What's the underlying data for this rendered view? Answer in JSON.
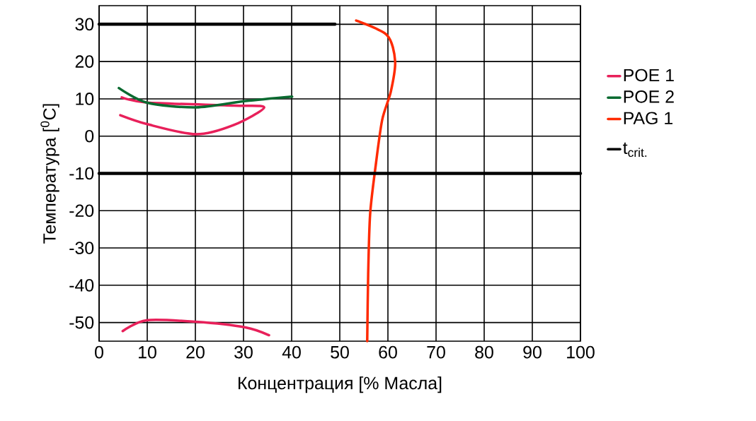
{
  "chart_data": {
    "type": "line",
    "xlabel": "Концентрация [% Масла]",
    "ylabel": "Температура [$^{0}$C]",
    "xlim": [
      0,
      100
    ],
    "ylim": [
      -55,
      35
    ],
    "xticks": [
      0,
      10,
      20,
      30,
      40,
      50,
      60,
      70,
      80,
      90,
      100
    ],
    "yticks": [
      -50,
      -40,
      -30,
      -20,
      -10,
      0,
      10,
      20,
      30
    ],
    "grid": true,
    "legend": "right",
    "marker": "none",
    "line_style": "solid",
    "series": [
      {
        "name": "POE 1",
        "color": "#e8205a",
        "x": [
          4.4,
          10,
          20.1,
          28,
          34.3,
          28,
          10,
          4.7,
          null,
          4.9,
          9.8,
          20.1,
          30.4,
          35.3
        ],
        "values": [
          5.6,
          3.2,
          0.5,
          3.0,
          7.7,
          8.2,
          9.0,
          10.4,
          null,
          -52.3,
          -49.4,
          -49.8,
          -51.3,
          -53.4
        ]
      },
      {
        "name": "POE 2",
        "color": "#0a6a30",
        "x": [
          4.1,
          9.9,
          20.1,
          30.4,
          40.1
        ],
        "values": [
          12.9,
          9.0,
          7.7,
          9.4,
          10.6
        ]
      },
      {
        "name": "PAG 1",
        "color": "#ff2a00",
        "x": [
          53.4,
          59.8,
          61.5,
          60.6,
          58.8,
          57.4,
          56.3,
          55.9,
          55.7
        ],
        "values": [
          31,
          27.1,
          20.1,
          11.9,
          4.3,
          -8.5,
          -21,
          -37,
          -55
        ]
      },
      {
        "name": "t$_{crit.}$",
        "color": "#000000",
        "x": [
          0,
          49,
          null,
          0,
          100
        ],
        "values": [
          30,
          30,
          null,
          -10,
          -10
        ]
      }
    ]
  }
}
